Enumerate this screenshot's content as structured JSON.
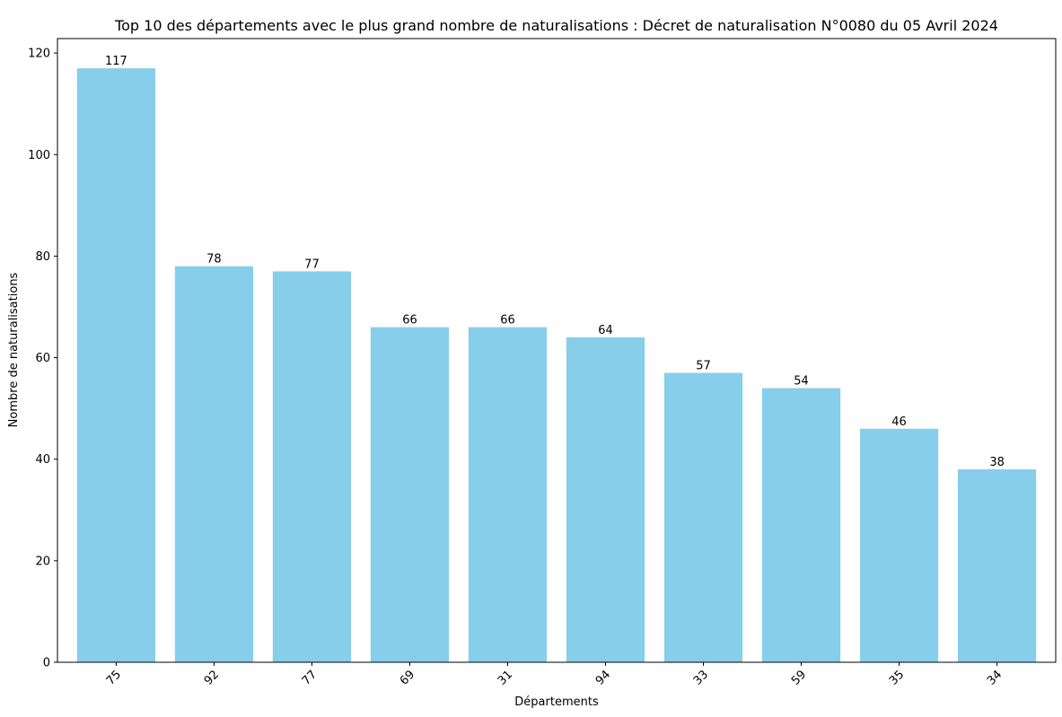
{
  "chart_data": {
    "type": "bar",
    "title": "Top 10 des départements avec le plus grand nombre de naturalisations : Décret de naturalisation N°0080 du 05 Avril 2024",
    "xlabel": "Départements",
    "ylabel": "Nombre de naturalisations",
    "categories": [
      "75",
      "92",
      "77",
      "69",
      "31",
      "94",
      "33",
      "59",
      "35",
      "34"
    ],
    "values": [
      117,
      78,
      77,
      66,
      66,
      64,
      57,
      54,
      46,
      38
    ],
    "ylim": [
      0,
      122.85
    ],
    "yticks": [
      0,
      20,
      40,
      60,
      80,
      100,
      120
    ],
    "x_tick_rotation": 45,
    "grid": false,
    "legend": "none",
    "bar_color": "#87ceeb",
    "data_labels": true
  }
}
